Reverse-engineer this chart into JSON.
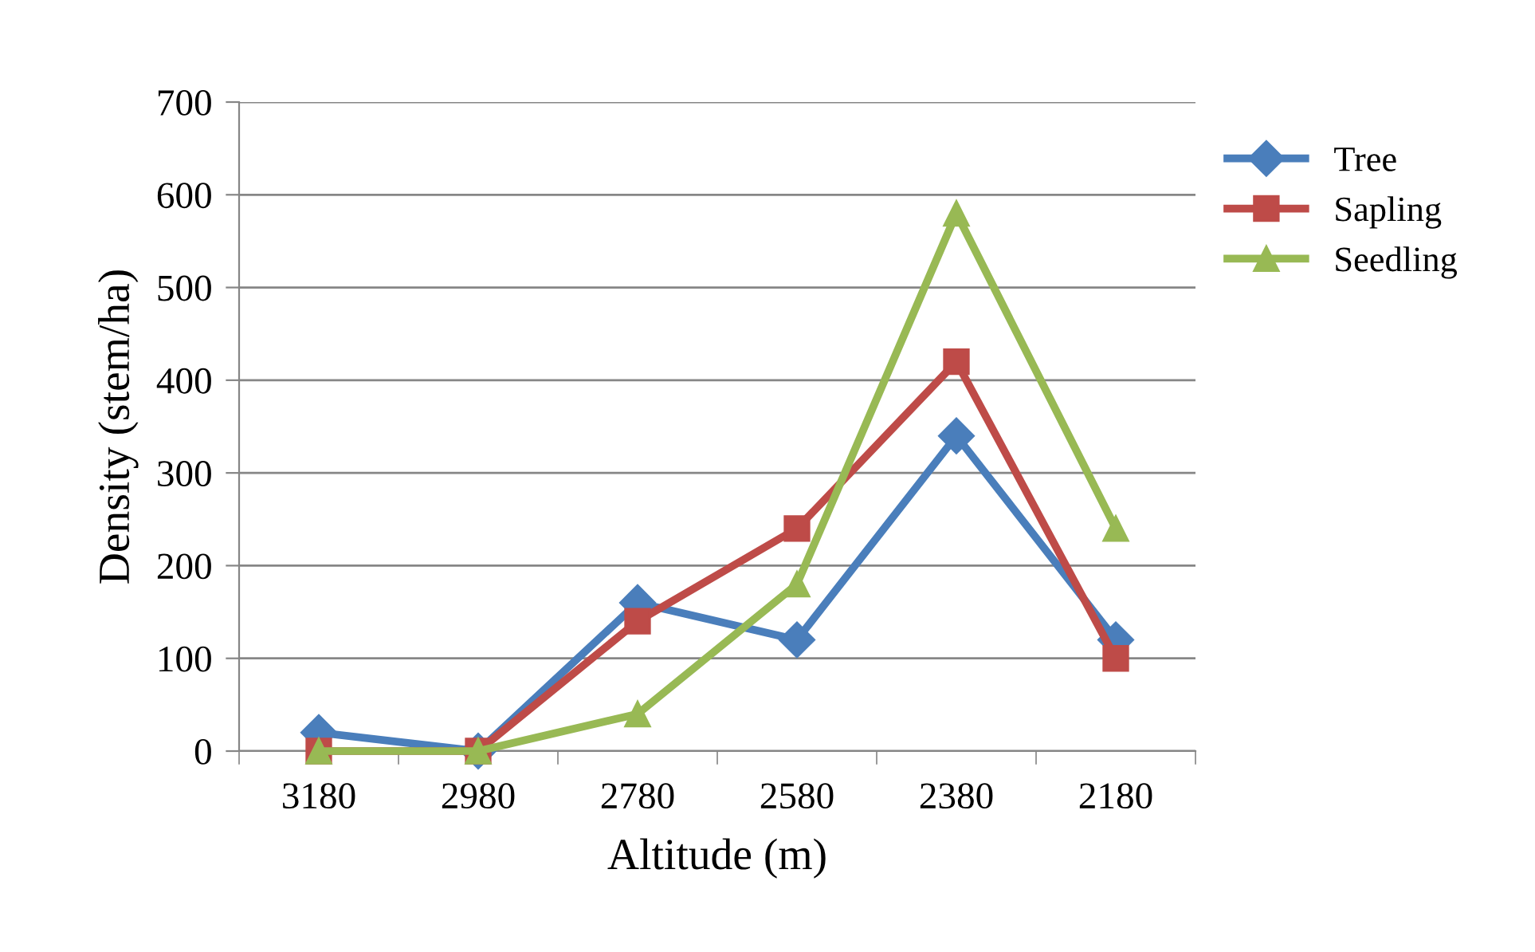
{
  "chart_data": {
    "type": "line",
    "xlabel": "Altitude (m)",
    "ylabel": "Density (stem/ha)",
    "categories": [
      "3180",
      "2980",
      "2780",
      "2580",
      "2380",
      "2180"
    ],
    "series": [
      {
        "name": "Tree",
        "color": "#4a7ebb",
        "marker": "diamond",
        "values": [
          20,
          0,
          160,
          120,
          340,
          120
        ]
      },
      {
        "name": "Sapling",
        "color": "#be4b48",
        "marker": "square",
        "values": [
          0,
          0,
          140,
          240,
          420,
          100
        ]
      },
      {
        "name": "Seedling",
        "color": "#98b954",
        "marker": "triangle",
        "values": [
          0,
          0,
          40,
          180,
          580,
          240
        ]
      }
    ],
    "ylim": [
      0,
      700
    ],
    "yticks": [
      0,
      100,
      200,
      300,
      400,
      500,
      600,
      700
    ],
    "grid": "y",
    "legend": "right",
    "line_style": "solid"
  }
}
